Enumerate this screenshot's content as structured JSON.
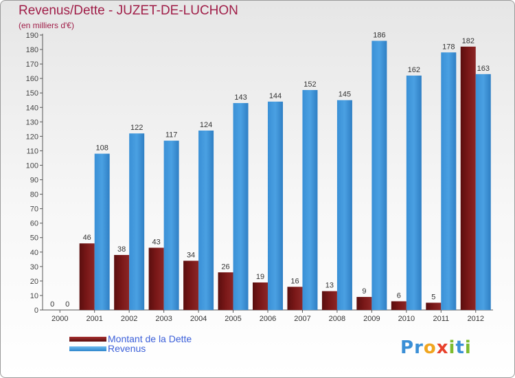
{
  "header": {
    "title": "Revenus/Dette - JUZET-DE-LUCHON",
    "unit": "(en milliers d'€)"
  },
  "legend": {
    "dette": "Montant de la Dette",
    "revenus": "Revenus"
  },
  "brand": {
    "letters": [
      "P",
      "r",
      "o",
      "x",
      "i",
      "t",
      "i"
    ],
    "letter_colors": [
      "#3a8fd6",
      "#3a8fd6",
      "#f0a51f",
      "#e8412c",
      "#7dbb2e",
      "#3a8fd6",
      "#7dbb2e"
    ]
  },
  "colors": {
    "dette": "#7a1818",
    "revenus": "#4aa0e2",
    "title": "#a01e48"
  },
  "chart_data": {
    "type": "bar",
    "title": "Revenus/Dette - JUZET-DE-LUCHON",
    "ylabel": "(en milliers d'€)",
    "xlabel": "",
    "ylim": [
      0,
      190
    ],
    "ytick_step": 10,
    "grid": false,
    "categories": [
      "2000",
      "2001",
      "2002",
      "2003",
      "2004",
      "2005",
      "2006",
      "2007",
      "2008",
      "2009",
      "2010",
      "2011",
      "2012"
    ],
    "series": [
      {
        "name": "Montant de la Dette",
        "values": [
          0,
          46,
          38,
          43,
          34,
          26,
          19,
          16,
          13,
          9,
          6,
          5,
          182
        ]
      },
      {
        "name": "Revenus",
        "values": [
          0,
          108,
          122,
          117,
          124,
          143,
          144,
          152,
          145,
          186,
          162,
          178,
          163
        ]
      }
    ]
  }
}
